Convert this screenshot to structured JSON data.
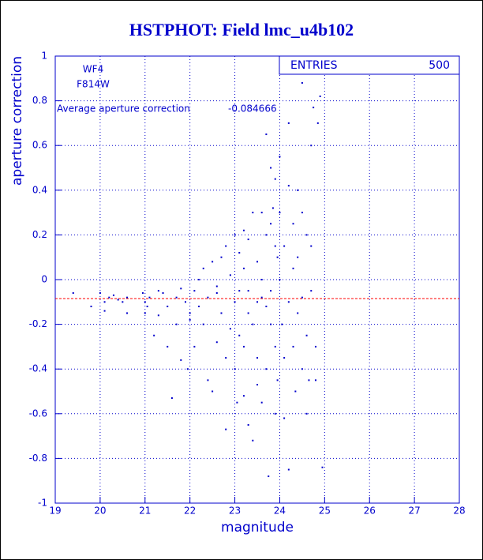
{
  "chart_data": {
    "type": "scatter",
    "title": "HSTPHOT: Field lmc_u4b102",
    "x_label": "magnitude",
    "y_label": "aperture correction",
    "annotations": [
      "WF4",
      "F814W"
    ],
    "average_label": "Average aperture correction",
    "average": -0.084666,
    "average_color": "#ff0000",
    "stats_label": "ENTRIES",
    "entries": 500,
    "xlim": [
      19,
      28
    ],
    "xticks": [
      19,
      20,
      21,
      22,
      23,
      24,
      25,
      26,
      27,
      28
    ],
    "ylim": [
      -1,
      1
    ],
    "yticks": [
      -1,
      -0.8,
      -0.6,
      -0.4,
      -0.2,
      0,
      0.2,
      0.4,
      0.6,
      0.8,
      1
    ],
    "grid": true,
    "x": [
      19.4,
      19.8,
      20.0,
      20.1,
      20.2,
      20.3,
      20.4,
      20.6,
      20.5,
      20.1,
      20.6,
      20.95,
      21.0,
      21.05,
      21.1,
      21.0,
      21.2,
      21.3,
      21.3,
      21.5,
      21.5,
      21.6,
      21.7,
      21.8,
      21.8,
      21.9,
      21.95,
      21.7,
      21.4,
      22.0,
      22.0,
      22.1,
      22.2,
      22.2,
      22.3,
      22.4,
      22.4,
      22.5,
      22.6,
      22.6,
      22.7,
      22.7,
      22.8,
      22.8,
      22.9,
      22.9,
      22.5,
      22.3,
      22.6,
      22.8,
      22.1,
      23.0,
      23.0,
      23.0,
      23.1,
      23.1,
      23.1,
      23.2,
      23.2,
      23.2,
      23.3,
      23.3,
      23.3,
      23.4,
      23.4,
      23.4,
      23.5,
      23.5,
      23.5,
      23.6,
      23.6,
      23.6,
      23.6,
      23.7,
      23.7,
      23.7,
      23.7,
      23.75,
      23.8,
      23.8,
      23.8,
      23.8,
      23.85,
      23.9,
      23.9,
      23.9,
      23.95,
      23.95,
      23.9,
      23.5,
      23.3,
      23.2,
      23.05,
      24.0,
      24.0,
      24.0,
      24.05,
      24.1,
      24.1,
      24.1,
      24.2,
      24.2,
      24.2,
      24.2,
      24.3,
      24.3,
      24.3,
      24.35,
      24.4,
      24.4,
      24.4,
      24.5,
      24.5,
      24.5,
      24.5,
      24.6,
      24.6,
      24.65,
      24.7,
      24.7,
      24.7,
      24.75,
      24.8,
      24.8,
      24.85,
      24.9,
      24.95,
      24.6
    ],
    "series": [
      {
        "color": "#0000cc",
        "values": [
          -0.06,
          -0.12,
          -0.06,
          -0.1,
          -0.08,
          -0.07,
          -0.09,
          -0.08,
          -0.1,
          -0.14,
          -0.15,
          -0.06,
          -0.1,
          -0.12,
          -0.08,
          -0.15,
          -0.25,
          -0.16,
          -0.05,
          -0.12,
          -0.3,
          -0.53,
          -0.2,
          -0.36,
          -0.04,
          -0.1,
          -0.4,
          -0.08,
          -0.06,
          -0.15,
          -0.18,
          -0.05,
          0.0,
          -0.12,
          -0.2,
          -0.08,
          -0.45,
          0.08,
          -0.03,
          -0.28,
          0.1,
          -0.15,
          -0.67,
          -0.35,
          0.02,
          -0.22,
          -0.5,
          0.05,
          -0.06,
          0.15,
          -0.3,
          -0.1,
          0.2,
          -0.4,
          -0.05,
          0.12,
          -0.25,
          -0.3,
          0.05,
          -0.52,
          -0.15,
          0.18,
          -0.05,
          -0.72,
          -0.2,
          0.3,
          0.08,
          -0.35,
          -0.47,
          0.3,
          -0.08,
          0.0,
          -0.55,
          0.65,
          0.2,
          -0.12,
          -0.4,
          -0.88,
          0.25,
          -0.2,
          0.5,
          -0.05,
          0.32,
          0.15,
          -0.3,
          -0.6,
          0.1,
          -0.45,
          0.45,
          -0.1,
          -0.65,
          0.22,
          -0.55,
          0.55,
          0.3,
          0.0,
          -0.2,
          -0.35,
          0.15,
          -0.62,
          0.7,
          0.42,
          -0.1,
          -0.85,
          0.25,
          -0.3,
          0.05,
          -0.5,
          0.4,
          -0.15,
          0.1,
          0.88,
          -0.08,
          -0.4,
          0.3,
          0.2,
          -0.25,
          -0.45,
          0.6,
          -0.05,
          0.15,
          0.77,
          -0.3,
          -0.45,
          0.7,
          0.82,
          -0.84,
          -0.6
        ]
      }
    ]
  }
}
